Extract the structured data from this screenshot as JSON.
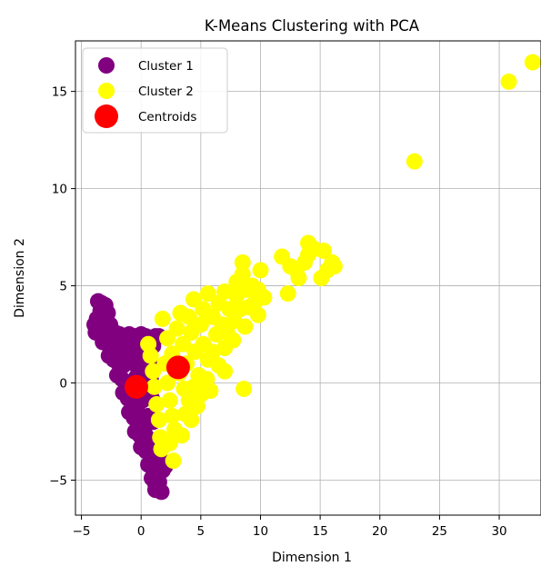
{
  "chart_data": {
    "type": "scatter",
    "title": "K-Means Clustering with PCA",
    "xlabel": "Dimension 1",
    "ylabel": "Dimension 2",
    "xlim": [
      -5.5,
      33.5
    ],
    "ylim": [
      -6.8,
      17.6
    ],
    "xticks": [
      -5,
      0,
      5,
      10,
      15,
      20,
      25,
      30
    ],
    "yticks": [
      -5,
      0,
      5,
      10,
      15
    ],
    "xtick_labels": [
      "−5",
      "0",
      "5",
      "10",
      "15",
      "20",
      "25",
      "30"
    ],
    "ytick_labels": [
      "−5",
      "0",
      "5",
      "10",
      "15"
    ],
    "grid": true,
    "legend_position": "top-left",
    "colors": {
      "cluster_1": "#800080",
      "cluster_2": "#ffff00",
      "centroids": "#ff0000"
    },
    "series": [
      {
        "name": "Cluster 1",
        "color": "#800080",
        "points": [
          [
            -3.6,
            4.2
          ],
          [
            -3.3,
            4.1
          ],
          [
            -3.0,
            4.0
          ],
          [
            -2.8,
            3.6
          ],
          [
            -3.4,
            3.7
          ],
          [
            -3.7,
            3.3
          ],
          [
            -3.9,
            3.0
          ],
          [
            -3.5,
            3.0
          ],
          [
            -3.0,
            3.2
          ],
          [
            -2.6,
            3.0
          ],
          [
            -3.8,
            2.6
          ],
          [
            -3.4,
            2.5
          ],
          [
            -3.0,
            2.6
          ],
          [
            -2.6,
            2.5
          ],
          [
            -2.2,
            2.6
          ],
          [
            -1.8,
            2.5
          ],
          [
            -1.4,
            2.4
          ],
          [
            -1.0,
            2.5
          ],
          [
            -0.5,
            2.4
          ],
          [
            0.0,
            2.5
          ],
          [
            0.4,
            2.4
          ],
          [
            0.8,
            2.3
          ],
          [
            1.2,
            2.4
          ],
          [
            1.5,
            2.4
          ],
          [
            -3.2,
            2.1
          ],
          [
            -2.8,
            2.0
          ],
          [
            -2.4,
            1.8
          ],
          [
            -2.0,
            1.6
          ],
          [
            -1.6,
            1.8
          ],
          [
            -1.2,
            1.9
          ],
          [
            -0.8,
            1.7
          ],
          [
            -0.3,
            1.8
          ],
          [
            0.2,
            1.6
          ],
          [
            0.6,
            1.7
          ],
          [
            1.0,
            1.9
          ],
          [
            -2.7,
            1.4
          ],
          [
            -2.3,
            1.2
          ],
          [
            -1.9,
            1.0
          ],
          [
            -1.5,
            0.9
          ],
          [
            -1.1,
            1.1
          ],
          [
            -0.6,
            1.0
          ],
          [
            -0.2,
            0.9
          ],
          [
            0.3,
            1.0
          ],
          [
            0.7,
            1.0
          ],
          [
            -2.0,
            0.4
          ],
          [
            -1.6,
            0.2
          ],
          [
            -1.2,
            0.0
          ],
          [
            -0.8,
            -0.2
          ],
          [
            -0.4,
            0.3
          ],
          [
            0.0,
            0.1
          ],
          [
            0.4,
            0.3
          ],
          [
            0.8,
            0.2
          ],
          [
            -1.5,
            -0.5
          ],
          [
            -1.1,
            -0.8
          ],
          [
            -0.7,
            -1.0
          ],
          [
            -0.3,
            -0.7
          ],
          [
            0.1,
            -0.9
          ],
          [
            0.5,
            -0.6
          ],
          [
            0.9,
            -0.8
          ],
          [
            -1.0,
            -1.5
          ],
          [
            -0.6,
            -1.8
          ],
          [
            -0.2,
            -1.6
          ],
          [
            0.2,
            -1.9
          ],
          [
            0.6,
            -1.7
          ],
          [
            1.0,
            -2.0
          ],
          [
            -0.5,
            -2.5
          ],
          [
            -0.1,
            -2.7
          ],
          [
            0.3,
            -2.6
          ],
          [
            0.7,
            -2.9
          ],
          [
            1.1,
            -3.0
          ],
          [
            0.0,
            -3.3
          ],
          [
            0.4,
            -3.5
          ],
          [
            0.8,
            -3.4
          ],
          [
            1.2,
            -3.7
          ],
          [
            1.6,
            -3.9
          ],
          [
            0.6,
            -4.2
          ],
          [
            1.0,
            -4.4
          ],
          [
            1.4,
            -4.3
          ],
          [
            1.8,
            -4.5
          ],
          [
            2.0,
            -4.3
          ],
          [
            0.9,
            -4.9
          ],
          [
            1.2,
            -5.2
          ],
          [
            1.5,
            -5.1
          ],
          [
            1.2,
            -5.5
          ],
          [
            1.7,
            -5.6
          ]
        ]
      },
      {
        "name": "Cluster 2",
        "color": "#ffff00",
        "points": [
          [
            0.6,
            2.0
          ],
          [
            0.8,
            1.4
          ],
          [
            1.0,
            0.6
          ],
          [
            1.1,
            -0.2
          ],
          [
            1.3,
            -1.1
          ],
          [
            1.5,
            -1.9
          ],
          [
            1.6,
            -2.8
          ],
          [
            1.7,
            -3.4
          ],
          [
            2.7,
            -4.0
          ],
          [
            2.0,
            1.0
          ],
          [
            2.2,
            0.0
          ],
          [
            2.4,
            -0.9
          ],
          [
            2.6,
            -1.7
          ],
          [
            2.8,
            -2.4
          ],
          [
            1.8,
            3.3
          ],
          [
            2.2,
            2.3
          ],
          [
            2.6,
            1.5
          ],
          [
            3.0,
            2.8
          ],
          [
            3.3,
            3.6
          ],
          [
            3.5,
            2.0
          ],
          [
            3.8,
            1.0
          ],
          [
            3.2,
            0.5
          ],
          [
            3.6,
            -0.3
          ],
          [
            4.0,
            -0.9
          ],
          [
            4.4,
            -0.2
          ],
          [
            4.8,
            0.4
          ],
          [
            5.0,
            -0.6
          ],
          [
            5.5,
            0.2
          ],
          [
            3.7,
            -1.6
          ],
          [
            4.2,
            -1.9
          ],
          [
            3.4,
            -2.7
          ],
          [
            2.4,
            -3.1
          ],
          [
            4.5,
            1.6
          ],
          [
            4.2,
            2.6
          ],
          [
            4.0,
            3.4
          ],
          [
            4.4,
            4.3
          ],
          [
            5.0,
            3.0
          ],
          [
            5.2,
            2.0
          ],
          [
            5.6,
            1.2
          ],
          [
            5.2,
            3.8
          ],
          [
            5.6,
            4.6
          ],
          [
            6.0,
            3.4
          ],
          [
            6.3,
            2.5
          ],
          [
            6.0,
            1.6
          ],
          [
            6.5,
            0.9
          ],
          [
            7.0,
            1.8
          ],
          [
            6.8,
            3.0
          ],
          [
            6.5,
            4.1
          ],
          [
            7.0,
            4.7
          ],
          [
            7.4,
            3.8
          ],
          [
            7.2,
            2.6
          ],
          [
            7.8,
            3.2
          ],
          [
            8.0,
            4.5
          ],
          [
            8.3,
            3.8
          ],
          [
            8.0,
            5.2
          ],
          [
            8.5,
            5.6
          ],
          [
            8.5,
            6.2
          ],
          [
            8.8,
            4.8
          ],
          [
            9.0,
            3.9
          ],
          [
            9.3,
            5.0
          ],
          [
            9.5,
            4.1
          ],
          [
            9.8,
            4.8
          ],
          [
            10.0,
            5.8
          ],
          [
            10.3,
            4.4
          ],
          [
            9.8,
            3.5
          ],
          [
            8.7,
            2.9
          ],
          [
            7.7,
            2.2
          ],
          [
            5.0,
            -0.2
          ],
          [
            4.7,
            -1.2
          ],
          [
            7.0,
            0.6
          ],
          [
            5.8,
            -0.4
          ],
          [
            8.6,
            -0.3
          ],
          [
            12.3,
            4.6
          ],
          [
            11.8,
            6.5
          ],
          [
            12.5,
            6.0
          ],
          [
            13.0,
            5.8
          ],
          [
            13.2,
            5.4
          ],
          [
            14.0,
            6.6
          ],
          [
            13.7,
            6.2
          ],
          [
            14.0,
            7.2
          ],
          [
            14.5,
            6.9
          ],
          [
            15.3,
            6.8
          ],
          [
            15.1,
            5.4
          ],
          [
            15.6,
            5.8
          ],
          [
            16.0,
            6.2
          ],
          [
            16.2,
            6.0
          ],
          [
            22.9,
            11.4
          ],
          [
            30.8,
            15.5
          ],
          [
            32.8,
            16.5
          ]
        ]
      },
      {
        "name": "Centroids",
        "color": "#ff0000",
        "points": [
          [
            -0.4,
            -0.2
          ],
          [
            3.1,
            0.8
          ]
        ]
      }
    ]
  }
}
